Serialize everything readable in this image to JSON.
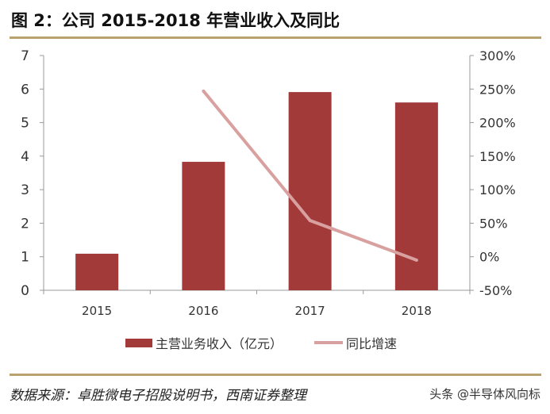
{
  "title": "图 2：公司 2015-2018 年营业收入及同比",
  "source": "数据来源：卓胜微电子招股说明书，西南证券整理",
  "watermark": "头条 @半导体风向标",
  "chart_data": {
    "type": "bar+line",
    "title": "图 2：公司 2015-2018 年营业收入及同比",
    "categories": [
      "2015",
      "2016",
      "2017",
      "2018"
    ],
    "series": [
      {
        "name": "主营业务收入（亿元）",
        "type": "bar",
        "axis": "left",
        "color": "#a33a3a",
        "values": [
          1.09,
          3.83,
          5.91,
          5.6
        ]
      },
      {
        "name": "同比增速",
        "type": "line",
        "axis": "right",
        "color": "#d9a0a0",
        "values": [
          null,
          247,
          54,
          -5
        ]
      }
    ],
    "y_left": {
      "range": [
        0,
        7
      ],
      "ticks": [
        "0",
        "1",
        "2",
        "3",
        "4",
        "5",
        "6",
        "7"
      ]
    },
    "y_right": {
      "range": [
        -50,
        300
      ],
      "ticks": [
        "-50%",
        "0%",
        "50%",
        "100%",
        "150%",
        "200%",
        "250%",
        "300%"
      ]
    },
    "grid": false,
    "legend": "bottom"
  }
}
